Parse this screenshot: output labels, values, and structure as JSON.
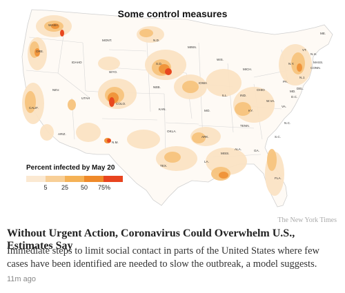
{
  "map": {
    "title": "Some control measures",
    "legend": {
      "title": "Percent infected by May 20",
      "ticks": [
        "5",
        "25",
        "50",
        "75%"
      ],
      "colors": [
        "#fbe9d2",
        "#f8cf97",
        "#f5b256",
        "#ef8a2a",
        "#e8441f"
      ]
    },
    "state_labels": [
      "WASH.",
      "ORE.",
      "CALIF.",
      "NEV.",
      "IDAHO",
      "MONT.",
      "WYO.",
      "UTAH",
      "ARIZ.",
      "COLO.",
      "N.M.",
      "N.D.",
      "S.D.",
      "NEB.",
      "KAN.",
      "OKLA.",
      "TEX.",
      "MINN.",
      "IOWA",
      "MO.",
      "ARK.",
      "LA.",
      "WIS.",
      "ILL.",
      "MICH.",
      "IND.",
      "OHIO",
      "KY.",
      "TENN.",
      "MISS.",
      "ALA.",
      "GA.",
      "FLA.",
      "S.C.",
      "N.C.",
      "VA.",
      "W.VA.",
      "PA.",
      "N.Y.",
      "VT.",
      "N.H.",
      "ME.",
      "MASS.",
      "CONN.",
      "N.J.",
      "MD.",
      "DEL.",
      "D.C."
    ]
  },
  "source": "The New York Times",
  "headline": "Without Urgent Action, Coronavirus Could Overwhelm U.S., Estimates Say",
  "summary": "Immediate steps to limit social contact in parts of the United States where few cases have been identified are needed to slow the outbreak, a model suggests.",
  "timestamp": "11m ago"
}
